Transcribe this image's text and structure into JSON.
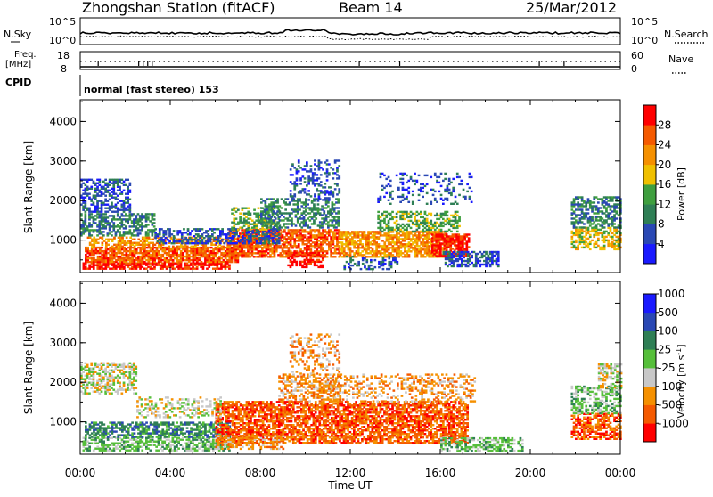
{
  "header": {
    "station": "Zhongshan Station (fitACF)",
    "beam": "Beam 14",
    "date": "25/Mar/2012"
  },
  "noise_panel": {
    "left_label": "N.Sky",
    "right_label": "N.Search",
    "ytick_top": "10^5",
    "ytick_bottom": "10^0"
  },
  "freq_panel": {
    "left_label_1": "Freq.",
    "left_label_2": "[MHz]",
    "left_tick_top": "18",
    "left_tick_bottom": "8",
    "right_label": "Nave",
    "right_tick_top": "60",
    "right_tick_bottom": "0"
  },
  "cpid_panel": {
    "label": "CPID",
    "text": "normal (fast stereo) 153"
  },
  "colors": {
    "power": [
      "#1a1aff",
      "#2a48b4",
      "#2f7f55",
      "#3f9f3f",
      "#f0c000",
      "#f59000",
      "#f55a00",
      "#ff0000"
    ],
    "velocity": [
      "#ff0000",
      "#f55a00",
      "#f59000",
      "#c8c8c8",
      "#56bf3a",
      "#2f7f55",
      "#2a48b4",
      "#1a1aff"
    ]
  },
  "chart_data": [
    {
      "type": "heatmap",
      "name": "power",
      "ylabel": "Slant Range [km]",
      "ylim": [
        180,
        4550
      ],
      "yticks": [
        "1000",
        "2000",
        "3000",
        "4000"
      ],
      "colorbar_label": "Power [dB]",
      "colorbar_ticks": [
        "4",
        "8",
        "12",
        "16",
        "20",
        "24",
        "28"
      ],
      "patches": [
        {
          "t": [
            0.1,
            6.6
          ],
          "r": [
            260,
            430
          ],
          "c": 7,
          "d": 0.75
        },
        {
          "t": [
            0.2,
            7.0
          ],
          "r": [
            430,
            820
          ],
          "c": 6,
          "d": 0.8
        },
        {
          "t": [
            0.3,
            8.6
          ],
          "r": [
            820,
            1050
          ],
          "c": 5,
          "d": 0.55
        },
        {
          "t": [
            6.6,
            11.5
          ],
          "r": [
            560,
            1250
          ],
          "c": 6,
          "d": 0.7
        },
        {
          "t": [
            9.2,
            10.8
          ],
          "r": [
            300,
            700
          ],
          "c": 7,
          "d": 0.5
        },
        {
          "t": [
            11.5,
            16.2
          ],
          "r": [
            560,
            1200
          ],
          "c": 5,
          "d": 0.7
        },
        {
          "t": [
            15.6,
            17.3
          ],
          "r": [
            580,
            1150
          ],
          "c": 7,
          "d": 0.8
        },
        {
          "t": [
            16.1,
            18.6
          ],
          "r": [
            320,
            700
          ],
          "c": 1,
          "d": 0.6
        },
        {
          "t": [
            0.0,
            3.3
          ],
          "r": [
            1100,
            1650
          ],
          "c": 2,
          "d": 0.55
        },
        {
          "t": [
            3.3,
            8.8
          ],
          "r": [
            900,
            1300
          ],
          "c": 1,
          "d": 0.55
        },
        {
          "t": [
            6.7,
            8.8
          ],
          "r": [
            1250,
            1800
          ],
          "c": 3,
          "d": 0.45
        },
        {
          "t": [
            8.0,
            11.5
          ],
          "r": [
            1300,
            2050
          ],
          "c": 2,
          "d": 0.5
        },
        {
          "t": [
            9.3,
            11.5
          ],
          "r": [
            2000,
            3000
          ],
          "c": 1,
          "d": 0.3
        },
        {
          "t": [
            0.0,
            2.2
          ],
          "r": [
            1700,
            2550
          ],
          "c": 1,
          "d": 0.5
        },
        {
          "t": [
            13.2,
            16.8
          ],
          "r": [
            1200,
            1700
          ],
          "c": 3,
          "d": 0.5
        },
        {
          "t": [
            13.2,
            17.4
          ],
          "r": [
            1900,
            2700
          ],
          "c": 1,
          "d": 0.2
        },
        {
          "t": [
            11.7,
            14.2
          ],
          "r": [
            250,
            600
          ],
          "c": 1,
          "d": 0.3
        },
        {
          "t": [
            21.8,
            24.0
          ],
          "r": [
            750,
            1300
          ],
          "c": 4,
          "d": 0.55
        },
        {
          "t": [
            21.8,
            24.0
          ],
          "r": [
            1300,
            2100
          ],
          "c": 2,
          "d": 0.5
        }
      ]
    },
    {
      "type": "heatmap",
      "name": "velocity",
      "ylabel": "Slant Range [km]",
      "ylim": [
        180,
        4550
      ],
      "yticks": [
        "1000",
        "2000",
        "3000",
        "4000"
      ],
      "xticks": [
        "00:00",
        "04:00",
        "08:00",
        "12:00",
        "16:00",
        "20:00",
        "00:00"
      ],
      "xlabel": "Time UT",
      "colorbar_label": "Velocity [m s^-1]",
      "colorbar_ticks": [
        "-1000",
        "-500",
        "-100",
        "-25",
        "25",
        "100",
        "500",
        "1000"
      ],
      "patches": [
        {
          "t": [
            0.1,
            6.6
          ],
          "r": [
            260,
            600
          ],
          "c": 4,
          "d": 0.6
        },
        {
          "t": [
            0.2,
            6.6
          ],
          "r": [
            600,
            1000
          ],
          "c": 5,
          "d": 0.6
        },
        {
          "t": [
            6.0,
            17.2
          ],
          "r": [
            450,
            1500
          ],
          "c": 1,
          "d": 0.7
        },
        {
          "t": [
            6.0,
            9.0
          ],
          "r": [
            300,
            650
          ],
          "c": 2,
          "d": 0.5
        },
        {
          "t": [
            8.8,
            11.5
          ],
          "r": [
            1500,
            2200
          ],
          "c": 2,
          "d": 0.5
        },
        {
          "t": [
            9.3,
            11.5
          ],
          "r": [
            2200,
            3200
          ],
          "c": 2,
          "d": 0.3
        },
        {
          "t": [
            0.0,
            2.5
          ],
          "r": [
            1700,
            2500
          ],
          "c": 3,
          "d": 0.55
        },
        {
          "t": [
            2.5,
            6.2
          ],
          "r": [
            1100,
            1600
          ],
          "c": 3,
          "d": 0.3
        },
        {
          "t": [
            16.0,
            19.6
          ],
          "r": [
            250,
            600
          ],
          "c": 4,
          "d": 0.55
        },
        {
          "t": [
            11.0,
            17.5
          ],
          "r": [
            1500,
            2200
          ],
          "c": 2,
          "d": 0.3
        },
        {
          "t": [
            21.8,
            24.0
          ],
          "r": [
            550,
            1200
          ],
          "c": 1,
          "d": 0.6
        },
        {
          "t": [
            21.8,
            24.0
          ],
          "r": [
            1200,
            1900
          ],
          "c": 4,
          "d": 0.45
        },
        {
          "t": [
            23.0,
            24.0
          ],
          "r": [
            1850,
            2450
          ],
          "c": 3,
          "d": 0.55
        }
      ]
    }
  ]
}
